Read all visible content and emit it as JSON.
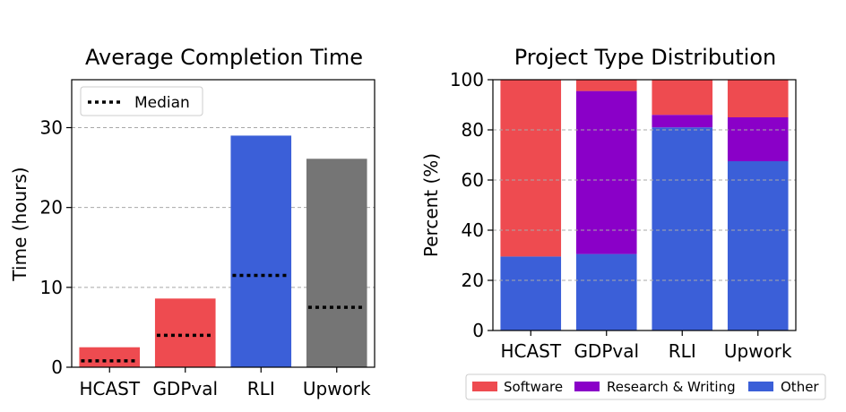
{
  "chart_data": [
    {
      "type": "bar",
      "title": "Average Completion Time",
      "xlabel": "",
      "ylabel": "Time (hours)",
      "ylim": [
        0,
        36
      ],
      "yticks": [
        0,
        10,
        20,
        30
      ],
      "grid": "horizontal-dashed",
      "categories": [
        "HCAST",
        "GDPval",
        "RLI",
        "Upwork"
      ],
      "values": [
        2.5,
        8.6,
        29.0,
        26.1
      ],
      "bar_colors": [
        "#ee4b50",
        "#ee4b50",
        "#3b5fd8",
        "#757575"
      ],
      "median": [
        0.8,
        4.0,
        11.5,
        7.5
      ],
      "legend": {
        "position": "top-left",
        "entries": [
          "Median"
        ]
      }
    },
    {
      "type": "bar",
      "stacked": true,
      "title": "Project Type Distribution",
      "xlabel": "",
      "ylabel": "Percent (%)",
      "ylim": [
        0,
        100
      ],
      "yticks": [
        0,
        20,
        40,
        60,
        80,
        100
      ],
      "grid": "horizontal-dashed",
      "categories": [
        "HCAST",
        "GDPval",
        "RLI",
        "Upwork"
      ],
      "series": [
        {
          "name": "Other",
          "color": "#3b5fd8",
          "values": [
            29.5,
            30.5,
            81,
            67.5
          ]
        },
        {
          "name": "Research & Writing",
          "color": "#8a00c8",
          "values": [
            0,
            65,
            5,
            17.5
          ]
        },
        {
          "name": "Software",
          "color": "#ee4b50",
          "values": [
            70.5,
            4.5,
            14,
            15
          ]
        }
      ],
      "legend": {
        "position": "bottom",
        "entries": [
          "Software",
          "Research & Writing",
          "Other"
        ]
      }
    }
  ]
}
